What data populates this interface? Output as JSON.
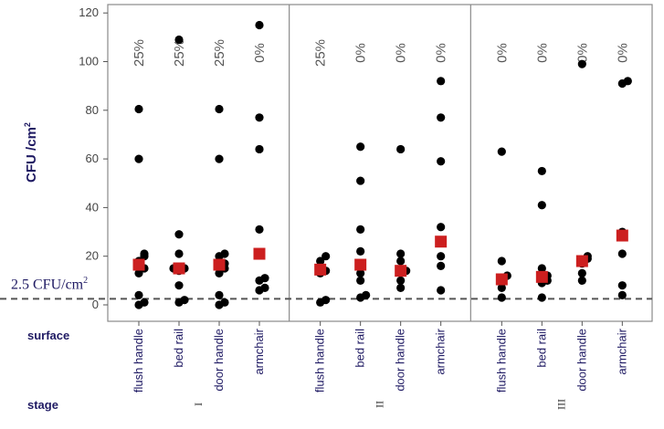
{
  "chart_data": {
    "type": "scatter",
    "ylabel_main": "CFU /cm",
    "ylabel_sup": "2",
    "reference": {
      "label_main": "2.5 CFU/cm",
      "label_sup": "2",
      "y": 2.5
    },
    "ylim": [
      -5,
      122
    ],
    "yticks": [
      "0",
      "20",
      "40",
      "60",
      "80",
      "100",
      "120"
    ],
    "surface_label": "surface",
    "stage_label": "stage",
    "stages": [
      {
        "name": "I",
        "groups": [
          {
            "surface": "flush handle",
            "percent": "25%",
            "mean": 16.5,
            "points": [
              80.5,
              60,
              21,
              20,
              18,
              15,
              13,
              4,
              1,
              0
            ]
          },
          {
            "surface": "bed rail",
            "percent": "25%",
            "mean": 15,
            "points": [
              109,
              29,
              21,
              15,
              15,
              14,
              8,
              2,
              1
            ]
          },
          {
            "surface": "door handle",
            "percent": "25%",
            "mean": 16.5,
            "points": [
              80.5,
              60,
              21,
              20,
              17,
              15,
              13,
              4,
              1,
              0
            ]
          },
          {
            "surface": "armchair",
            "percent": "0%",
            "mean": 21,
            "points": [
              115,
              77,
              64,
              31,
              21,
              11,
              10,
              7,
              6
            ]
          }
        ]
      },
      {
        "name": "II",
        "groups": [
          {
            "surface": "flush handle",
            "percent": "25%",
            "mean": 14.5,
            "points": [
              20,
              18,
              14,
              13,
              2,
              1
            ]
          },
          {
            "surface": "bed rail",
            "percent": "0%",
            "mean": 16.5,
            "points": [
              65,
              51,
              31,
              22,
              16,
              13,
              10,
              4,
              3
            ]
          },
          {
            "surface": "door handle",
            "percent": "0%",
            "mean": 14,
            "points": [
              64,
              21,
              18,
              14,
              14,
              10,
              7
            ]
          },
          {
            "surface": "armchair",
            "percent": "0%",
            "mean": 26,
            "points": [
              92,
              77,
              59,
              32,
              20,
              16,
              6
            ]
          }
        ]
      },
      {
        "name": "III",
        "groups": [
          {
            "surface": "flush handle",
            "percent": "0%",
            "mean": 10.5,
            "points": [
              63,
              18,
              12,
              10,
              7,
              3
            ]
          },
          {
            "surface": "bed rail",
            "percent": "0%",
            "mean": 11.5,
            "points": [
              55,
              41,
              15,
              12,
              10,
              9,
              3
            ]
          },
          {
            "surface": "door handle",
            "percent": "0%",
            "mean": 18,
            "points": [
              99,
              20,
              19,
              17,
              13,
              10
            ]
          },
          {
            "surface": "armchair",
            "percent": "0%",
            "mean": 28.5,
            "points": [
              92,
              91,
              30,
              21,
              8,
              4
            ]
          }
        ]
      }
    ],
    "colors": {
      "points": "#000000",
      "mean": "#cc1f1f",
      "reference_line": "#555555",
      "label": "#1f1a63",
      "axis_text": "#444444"
    }
  }
}
